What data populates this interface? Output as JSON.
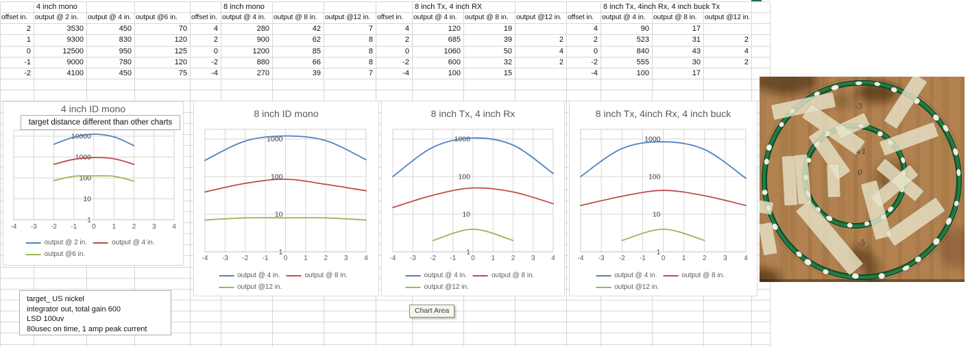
{
  "sheet": {
    "tables": [
      {
        "title": "4 inch mono",
        "headers": [
          "offset in.",
          "output @ 2 in.",
          "output @ 4 in.",
          "output @6 in."
        ],
        "rows": [
          [
            "2",
            "3530",
            "450",
            "70"
          ],
          [
            "1",
            "9300",
            "830",
            "120"
          ],
          [
            "0",
            "12500",
            "950",
            "125"
          ],
          [
            "-1",
            "9000",
            "780",
            "120"
          ],
          [
            "-2",
            "4100",
            "450",
            "75"
          ]
        ]
      },
      {
        "title": "8 inch mono",
        "headers": [
          "offset in.",
          "output @ 4 in.",
          "output @ 8 in.",
          "output @12 in."
        ],
        "rows": [
          [
            "4",
            "280",
            "42",
            "7"
          ],
          [
            "2",
            "900",
            "62",
            "8"
          ],
          [
            "0",
            "1200",
            "85",
            "8"
          ],
          [
            "-2",
            "880",
            "66",
            "8"
          ],
          [
            "-4",
            "270",
            "39",
            "7"
          ]
        ]
      },
      {
        "title": "8 inch Tx, 4 inch RX",
        "headers": [
          "offset in.",
          "output @ 4 in.",
          "output @ 8 in.",
          "output @12 in."
        ],
        "rows": [
          [
            "4",
            "120",
            "19",
            ""
          ],
          [
            "2",
            "685",
            "39",
            "2"
          ],
          [
            "0",
            "1060",
            "50",
            "4"
          ],
          [
            "-2",
            "600",
            "32",
            "2"
          ],
          [
            "-4",
            "100",
            "15",
            ""
          ]
        ]
      },
      {
        "title": "8 inch Tx, 4inch Rx, 4 inch buck Tx",
        "headers": [
          "offset in.",
          "output @ 4 in.",
          "output @ 8 in.",
          "output @12 in."
        ],
        "rows": [
          [
            "4",
            "90",
            "17",
            ""
          ],
          [
            "2",
            "523",
            "31",
            "2"
          ],
          [
            "0",
            "840",
            "43",
            "4"
          ],
          [
            "-2",
            "555",
            "30",
            "2"
          ],
          [
            "-4",
            "100",
            "17",
            ""
          ]
        ]
      }
    ]
  },
  "chart_data": [
    {
      "type": "line",
      "title": "4 inch ID mono",
      "note": "target distance different than other charts",
      "ylog": true,
      "xlim": [
        -4,
        4
      ],
      "ylim": [
        1,
        20000
      ],
      "x_ticks": [
        -4,
        -3,
        -2,
        -1,
        0,
        1,
        2,
        3,
        4
      ],
      "y_ticks": [
        1,
        10,
        100,
        1000,
        10000
      ],
      "series": [
        {
          "name": "output @ 2 in.",
          "x": [
            -2,
            -1,
            0,
            1,
            2
          ],
          "values": [
            4100,
            9000,
            12500,
            9300,
            3530
          ]
        },
        {
          "name": "output @ 4 in.",
          "x": [
            -2,
            -1,
            0,
            1,
            2
          ],
          "values": [
            450,
            780,
            950,
            830,
            450
          ]
        },
        {
          "name": "output @6 in.",
          "x": [
            -2,
            -1,
            0,
            1,
            2
          ],
          "values": [
            75,
            120,
            125,
            120,
            70
          ]
        }
      ]
    },
    {
      "type": "line",
      "title": "8 inch ID mono",
      "ylog": true,
      "xlim": [
        -4,
        4
      ],
      "ylim": [
        1,
        2000
      ],
      "x_ticks": [
        -4,
        -3,
        -2,
        -1,
        0,
        1,
        2,
        3,
        4
      ],
      "y_ticks": [
        1,
        10,
        100,
        1000
      ],
      "series": [
        {
          "name": "output @ 4 in.",
          "x": [
            -4,
            -2,
            0,
            2,
            4
          ],
          "values": [
            270,
            880,
            1200,
            900,
            280
          ]
        },
        {
          "name": "output @ 8 in.",
          "x": [
            -4,
            -2,
            0,
            2,
            4
          ],
          "values": [
            39,
            66,
            85,
            62,
            42
          ]
        },
        {
          "name": "output @12 in.",
          "x": [
            -4,
            -2,
            0,
            2,
            4
          ],
          "values": [
            7,
            8,
            8,
            8,
            7
          ]
        }
      ]
    },
    {
      "type": "line",
      "title": "8 inch Tx, 4 inch Rx",
      "ylog": true,
      "xlim": [
        -4,
        4
      ],
      "ylim": [
        1,
        2000
      ],
      "x_ticks": [
        -4,
        -3,
        -2,
        -1,
        0,
        1,
        2,
        3,
        4
      ],
      "y_ticks": [
        1,
        10,
        100,
        1000
      ],
      "series": [
        {
          "name": "output @ 4 in.",
          "x": [
            -4,
            -2,
            0,
            2,
            4
          ],
          "values": [
            100,
            600,
            1060,
            685,
            120
          ]
        },
        {
          "name": "output @ 8 in.",
          "x": [
            -4,
            -2,
            0,
            2,
            4
          ],
          "values": [
            15,
            32,
            50,
            39,
            19
          ]
        },
        {
          "name": "output @12 in.",
          "x": [
            -2,
            0,
            2
          ],
          "values": [
            2,
            4,
            2
          ]
        }
      ]
    },
    {
      "type": "line",
      "title": "8 inch Tx, 4inch Rx, 4 inch buck",
      "ylog": true,
      "xlim": [
        -4,
        4
      ],
      "ylim": [
        1,
        2000
      ],
      "x_ticks": [
        -4,
        -3,
        -2,
        -1,
        0,
        1,
        2,
        3,
        4
      ],
      "y_ticks": [
        1,
        10,
        100,
        1000
      ],
      "series": [
        {
          "name": "output @ 4 in.",
          "x": [
            -4,
            -2,
            0,
            2,
            4
          ],
          "values": [
            100,
            555,
            840,
            523,
            90
          ]
        },
        {
          "name": "output @ 8 in.",
          "x": [
            -4,
            -2,
            0,
            2,
            4
          ],
          "values": [
            17,
            30,
            43,
            31,
            17
          ]
        },
        {
          "name": "output @12 in.",
          "x": [
            -2,
            0,
            2
          ],
          "values": [
            2,
            4,
            2
          ]
        }
      ]
    }
  ],
  "annotations": {
    "chart1_note": "target distance different than other charts",
    "notes_box": [
      "target_ US nickel",
      "integrator out, total gain 600",
      "LSD 100uv",
      "80usec on time, 1 amp peak current"
    ],
    "tooltip": "Chart Area"
  },
  "photo": {
    "alt": "two concentric green wire coils held to a plywood board with masking tape, white paint dabs marking turns",
    "marks": [
      "-3",
      "+1",
      "0",
      "-5"
    ]
  },
  "colors": {
    "series_blue": "#4F81BD",
    "series_red": "#BE4B48",
    "series_green": "#9FB254",
    "gridline": "#d6d6d6",
    "axis_text": "#595959",
    "selection_green": "#217346"
  }
}
